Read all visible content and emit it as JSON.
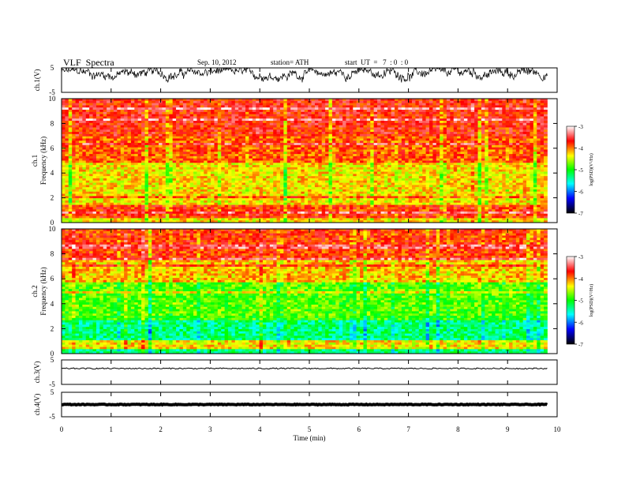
{
  "header": {
    "title": "VLF  Spectra",
    "date": "Sep. 10, 2012",
    "station": "station= ATH",
    "start": "start  UT  =   7  : 0  : 0"
  },
  "chart_data": [
    {
      "type": "line",
      "panel": "ch1-waveform",
      "ylabel": "ch.1(V)",
      "ylim": [
        -5,
        5
      ],
      "yticks": [
        "5",
        "-5"
      ],
      "xlim": [
        0,
        10
      ],
      "description_values": "noisy waveform mostly between about 0 and 5 V"
    },
    {
      "type": "heatmap",
      "panel": "ch1-spectrogram",
      "ylabel": [
        "ch.1",
        "Frequency  (kHz)"
      ],
      "ylim": [
        0,
        10
      ],
      "yticks": [
        "0",
        "2",
        "4",
        "6",
        "8",
        "10"
      ],
      "xlim": [
        0,
        9.8
      ],
      "colorbar": {
        "label": "log(PSD)(V²/Hz)",
        "range": [
          -7,
          -3
        ],
        "ticks": [
          "-3",
          "-4",
          "-5",
          "-6",
          "-7"
        ]
      },
      "bands": [
        {
          "f": [
            0,
            0.3
          ],
          "level": -4.3
        },
        {
          "f": [
            0.3,
            1.4
          ],
          "level": -3.8
        },
        {
          "f": [
            1.4,
            4.8
          ],
          "level": -4.3
        },
        {
          "f": [
            4.8,
            7.0
          ],
          "level": -3.9
        },
        {
          "f": [
            7.0,
            10
          ],
          "level": -3.7
        }
      ]
    },
    {
      "type": "heatmap",
      "panel": "ch2-spectrogram",
      "ylabel": [
        "ch.2",
        "Frequency  (kHz)"
      ],
      "ylim": [
        0,
        10
      ],
      "yticks": [
        "0",
        "2",
        "4",
        "6",
        "8",
        "10"
      ],
      "xlim": [
        0,
        9.8
      ],
      "colorbar": {
        "label": "log(PSD)(V²/Hz)",
        "range": [
          -7,
          -3
        ],
        "ticks": [
          "-3",
          "-4",
          "-5",
          "-6",
          "-7"
        ]
      },
      "bands": [
        {
          "f": [
            0,
            0.3
          ],
          "level": -5.3
        },
        {
          "f": [
            0.3,
            1.0
          ],
          "level": -4.3
        },
        {
          "f": [
            1.0,
            3.0
          ],
          "level": -5.3
        },
        {
          "f": [
            3.0,
            5.8
          ],
          "level": -4.8
        },
        {
          "f": [
            5.8,
            7.5
          ],
          "level": -4.2
        },
        {
          "f": [
            7.5,
            10
          ],
          "level": -3.8
        }
      ]
    },
    {
      "type": "line",
      "panel": "ch3-waveform",
      "ylabel": "ch.3(V)",
      "ylim": [
        -5,
        5
      ],
      "yticks": [
        "5",
        "-5"
      ],
      "xlim": [
        0,
        10
      ],
      "level": 1.5
    },
    {
      "type": "line",
      "panel": "ch4-waveform",
      "ylabel": "ch.4(V)",
      "ylim": [
        -5,
        5
      ],
      "yticks": [
        "5",
        "-5"
      ],
      "xlim": [
        0,
        10
      ],
      "level": 0
    }
  ],
  "xaxis": {
    "label": "Time  (min)",
    "ticks": [
      "0",
      "1",
      "2",
      "3",
      "4",
      "5",
      "6",
      "7",
      "8",
      "9",
      "10"
    ]
  },
  "colors": {
    "colormap": [
      "#000000",
      "#0000ff",
      "#00ffff",
      "#00ff00",
      "#ffff00",
      "#ff0000",
      "#ffffff"
    ]
  }
}
